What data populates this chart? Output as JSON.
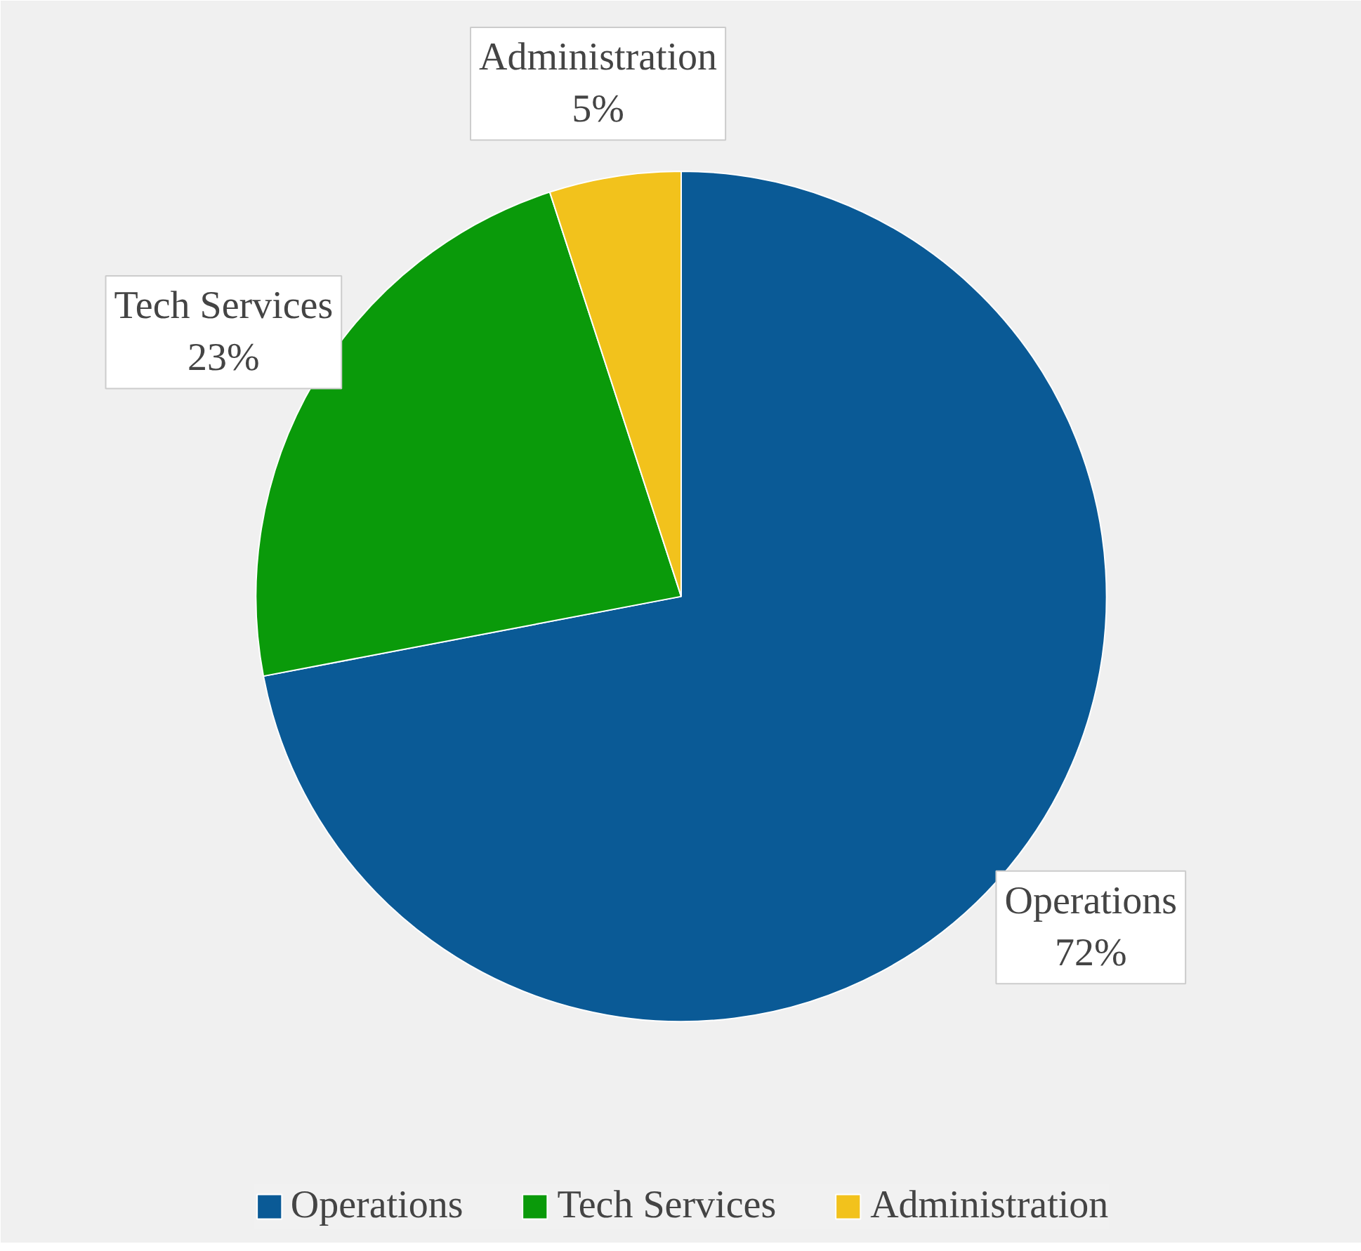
{
  "chart_data": {
    "type": "pie",
    "categories": [
      "Operations",
      "Tech Services",
      "Administration"
    ],
    "values": [
      72,
      23,
      5
    ],
    "value_labels": [
      "72%",
      "23%",
      "5%"
    ],
    "colors": [
      "#0a5a96",
      "#0a9a0a",
      "#f2c21c"
    ],
    "legend": "bottom"
  }
}
